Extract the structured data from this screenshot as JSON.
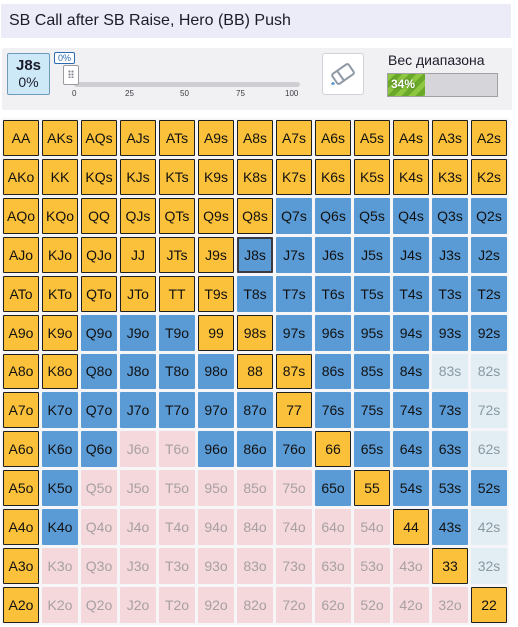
{
  "header": {
    "title": "SB Call after SB Raise, Hero (BB) Push"
  },
  "controls": {
    "hand": "J8s",
    "hand_pct": "0%",
    "slider_value": "0%",
    "slider_ticks": [
      "0",
      "25",
      "50",
      "75",
      "100"
    ],
    "weight_label": "Вес диапазона",
    "weight_value": "34%",
    "weight_fraction": 0.34
  },
  "grid": {
    "rows": [
      [
        "AA",
        "AKs",
        "AQs",
        "AJs",
        "ATs",
        "A9s",
        "A8s",
        "A7s",
        "A6s",
        "A5s",
        "A4s",
        "A3s",
        "A2s"
      ],
      [
        "AKo",
        "KK",
        "KQs",
        "KJs",
        "KTs",
        "K9s",
        "K8s",
        "K7s",
        "K6s",
        "K5s",
        "K4s",
        "K3s",
        "K2s"
      ],
      [
        "AQo",
        "KQo",
        "QQ",
        "QJs",
        "QTs",
        "Q9s",
        "Q8s",
        "Q7s",
        "Q6s",
        "Q5s",
        "Q4s",
        "Q3s",
        "Q2s"
      ],
      [
        "AJo",
        "KJo",
        "QJo",
        "JJ",
        "JTs",
        "J9s",
        "J8s",
        "J7s",
        "J6s",
        "J5s",
        "J4s",
        "J3s",
        "J2s"
      ],
      [
        "ATo",
        "KTo",
        "QTo",
        "JTo",
        "TT",
        "T9s",
        "T8s",
        "T7s",
        "T6s",
        "T5s",
        "T4s",
        "T3s",
        "T2s"
      ],
      [
        "A9o",
        "K9o",
        "Q9o",
        "J9o",
        "T9o",
        "99",
        "98s",
        "97s",
        "96s",
        "95s",
        "94s",
        "93s",
        "92s"
      ],
      [
        "A8o",
        "K8o",
        "Q8o",
        "J8o",
        "T8o",
        "98o",
        "88",
        "87s",
        "86s",
        "85s",
        "84s",
        "83s",
        "82s"
      ],
      [
        "A7o",
        "K7o",
        "Q7o",
        "J7o",
        "T7o",
        "97o",
        "87o",
        "77",
        "76s",
        "75s",
        "74s",
        "73s",
        "72s"
      ],
      [
        "A6o",
        "K6o",
        "Q6o",
        "J6o",
        "T6o",
        "96o",
        "86o",
        "76o",
        "66",
        "65s",
        "64s",
        "63s",
        "62s"
      ],
      [
        "A5o",
        "K5o",
        "Q5o",
        "J5o",
        "T5o",
        "95o",
        "85o",
        "75o",
        "65o",
        "55",
        "54s",
        "53s",
        "52s"
      ],
      [
        "A4o",
        "K4o",
        "Q4o",
        "J4o",
        "T4o",
        "94o",
        "84o",
        "74o",
        "64o",
        "54o",
        "44",
        "43s",
        "42s"
      ],
      [
        "A3o",
        "K3o",
        "Q3o",
        "J3o",
        "T3o",
        "93o",
        "83o",
        "73o",
        "63o",
        "53o",
        "43o",
        "33",
        "32s"
      ],
      [
        "A2o",
        "K2o",
        "Q2o",
        "J2o",
        "T2o",
        "92o",
        "82o",
        "72o",
        "62o",
        "52o",
        "42o",
        "32o",
        "22"
      ]
    ],
    "actions": [
      [
        "r",
        "r",
        "r",
        "r",
        "r",
        "r",
        "r",
        "r",
        "r",
        "r",
        "r",
        "r",
        "r"
      ],
      [
        "r",
        "r",
        "r",
        "r",
        "r",
        "r",
        "r",
        "r",
        "r",
        "r",
        "r",
        "r",
        "r"
      ],
      [
        "r",
        "r",
        "r",
        "r",
        "r",
        "r",
        "r",
        "c",
        "c",
        "c",
        "c",
        "c",
        "c"
      ],
      [
        "r",
        "r",
        "r",
        "r",
        "r",
        "r",
        "c",
        "c",
        "c",
        "c",
        "c",
        "c",
        "c"
      ],
      [
        "r",
        "r",
        "r",
        "r",
        "r",
        "r",
        "c",
        "c",
        "c",
        "c",
        "c",
        "c",
        "c"
      ],
      [
        "r",
        "r",
        "c",
        "c",
        "c",
        "r",
        "r",
        "c",
        "c",
        "c",
        "c",
        "c",
        "c"
      ],
      [
        "r",
        "r",
        "c",
        "c",
        "c",
        "c",
        "r",
        "r",
        "c",
        "c",
        "c",
        "p",
        "p"
      ],
      [
        "r",
        "c",
        "c",
        "c",
        "c",
        "c",
        "c",
        "r",
        "c",
        "c",
        "c",
        "c",
        "p"
      ],
      [
        "r",
        "c",
        "c",
        "f",
        "f",
        "c",
        "c",
        "c",
        "r",
        "c",
        "c",
        "c",
        "p"
      ],
      [
        "r",
        "c",
        "f",
        "f",
        "f",
        "f",
        "f",
        "f",
        "c",
        "r",
        "c",
        "c",
        "c"
      ],
      [
        "r",
        "c",
        "f",
        "f",
        "f",
        "f",
        "f",
        "f",
        "f",
        "f",
        "r",
        "c",
        "p"
      ],
      [
        "r",
        "f",
        "f",
        "f",
        "f",
        "f",
        "f",
        "f",
        "f",
        "f",
        "f",
        "r",
        "p"
      ],
      [
        "r",
        "f",
        "f",
        "f",
        "f",
        "f",
        "f",
        "f",
        "f",
        "f",
        "f",
        "f",
        "r"
      ]
    ],
    "selected_hand": "J8s"
  },
  "colors": {
    "raise": "#fcc13a",
    "call": "#5b9bd5",
    "fold_suited": "#e3eef4",
    "fold_offsuit": "#f4d8dc",
    "weight_fill": "#8dc63f"
  },
  "icons": {
    "eraser_button": "eraser-icon"
  }
}
